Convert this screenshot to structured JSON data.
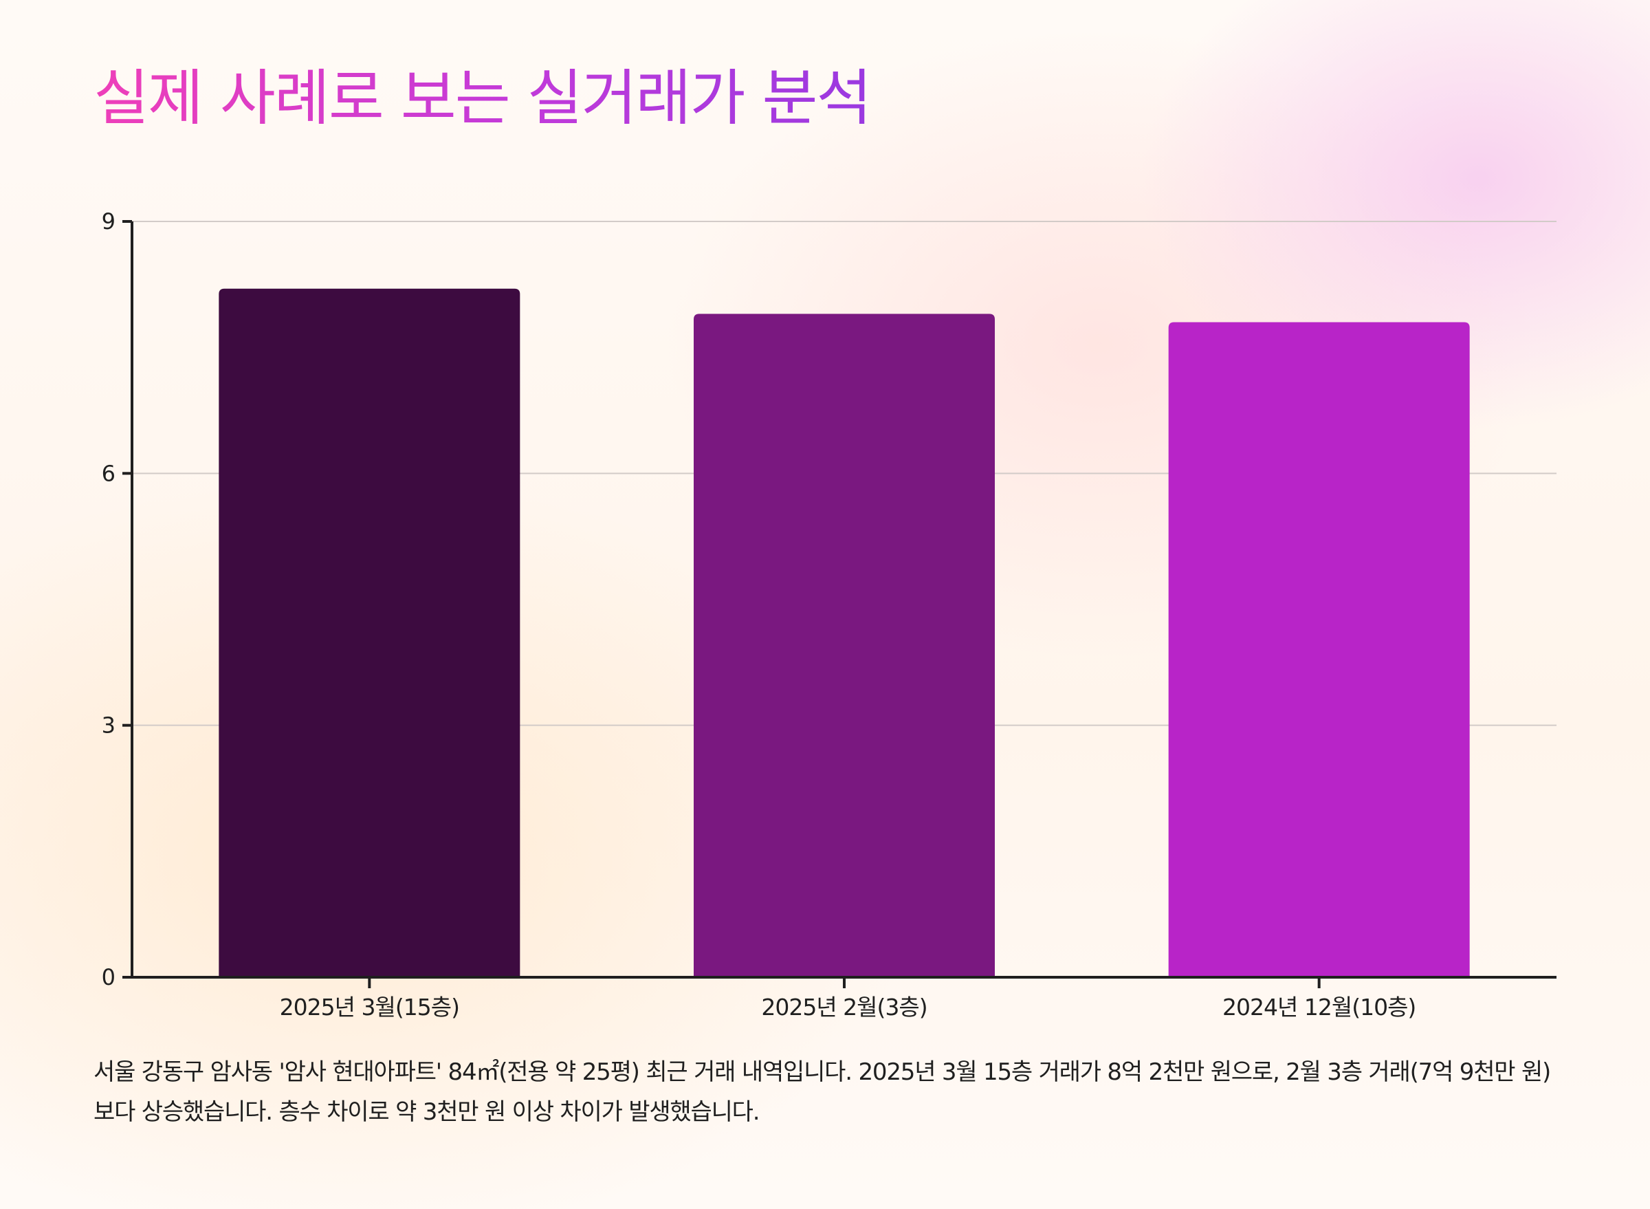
{
  "title": "실제 사례로 보는 실거래가 분석",
  "caption": "서울 강동구 암사동 '암사 현대아파트' 84㎡(전용 약 25평) 최근 거래 내역입니다. 2025년 3월 15층 거래가 8억 2천만 원으로, 2월 3층 거래(7억 9천만 원)보다 상승했습니다. 층수 차이로 약 3천만 원 이상 차이가 발생했습니다.",
  "chart_data": {
    "type": "bar",
    "categories": [
      "2025년 3월(15층)",
      "2025년 2월(3층)",
      "2024년 12월(10층)"
    ],
    "values": [
      8.2,
      7.9,
      7.8
    ],
    "colors": [
      "#3d0b40",
      "#7a1880",
      "#b824c8"
    ],
    "title": "",
    "xlabel": "",
    "ylabel": "",
    "ylim": [
      0,
      9
    ],
    "yticks": [
      0,
      3,
      6,
      9
    ],
    "grid": true
  }
}
